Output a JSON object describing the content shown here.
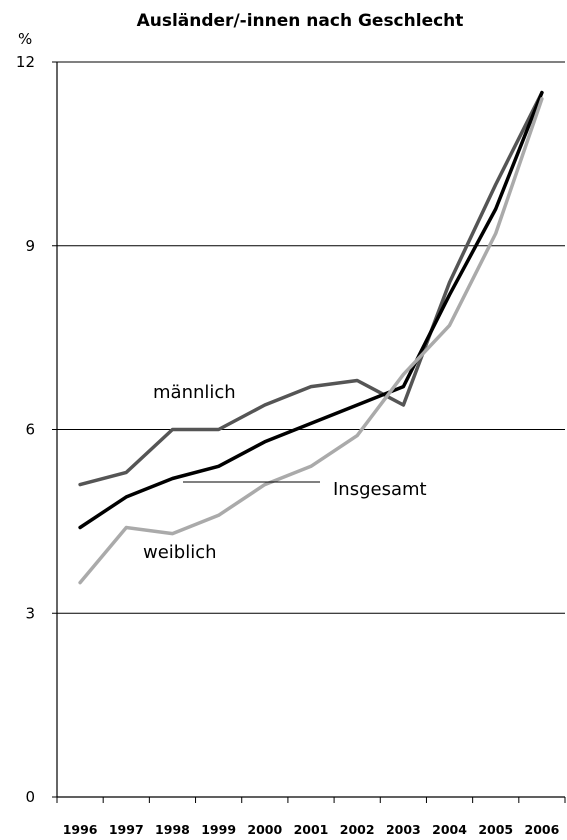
{
  "chart_data": {
    "type": "line",
    "title": "Ausländer/-innen nach Geschlecht",
    "ylabel": "%",
    "xlabel": "",
    "categories": [
      "1996",
      "1997",
      "1998",
      "1999",
      "2000",
      "2001",
      "2002",
      "2003",
      "2004",
      "2005",
      "2006"
    ],
    "y_ticks": [
      "0",
      "3",
      "6",
      "9",
      "12"
    ],
    "ylim": [
      0,
      12
    ],
    "grid": true,
    "series": [
      {
        "name": "männlich",
        "color": "#555555",
        "values": [
          5.1,
          5.3,
          6.0,
          6.0,
          6.4,
          6.7,
          6.8,
          6.4,
          8.4,
          10.0,
          11.5
        ]
      },
      {
        "name": "Insgesamt",
        "color": "#000000",
        "values": [
          4.4,
          4.9,
          5.2,
          5.4,
          5.8,
          6.1,
          6.4,
          6.7,
          8.2,
          9.6,
          11.5
        ]
      },
      {
        "name": "weiblich",
        "color": "#aaaaaa",
        "values": [
          3.5,
          4.4,
          4.3,
          4.6,
          5.1,
          5.4,
          5.9,
          6.9,
          7.7,
          9.2,
          11.4
        ]
      }
    ]
  }
}
